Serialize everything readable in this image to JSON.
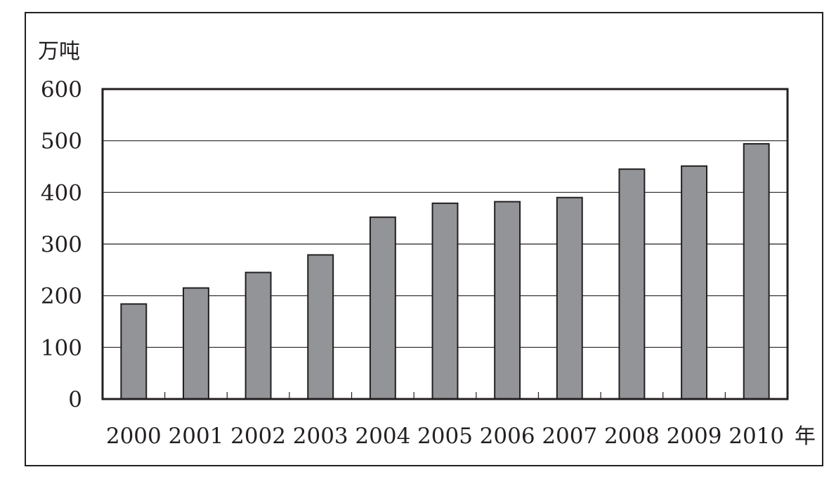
{
  "chart_data": {
    "type": "bar",
    "title": "",
    "ylabel": "万吨",
    "xlabel": "年",
    "categories": [
      "2000",
      "2001",
      "2002",
      "2003",
      "2004",
      "2005",
      "2006",
      "2007",
      "2008",
      "2009",
      "2010"
    ],
    "values": [
      184,
      215,
      245,
      279,
      352,
      379,
      382,
      390,
      445,
      451,
      494
    ],
    "ylim": [
      0,
      600
    ],
    "yticks": [
      "0",
      "100",
      "200",
      "300",
      "400",
      "500",
      "600"
    ],
    "grid": true,
    "legend": "none",
    "colors": {
      "bar_fill": "#929497",
      "bar_stroke": "#231f20",
      "axis": "#231f20"
    }
  }
}
